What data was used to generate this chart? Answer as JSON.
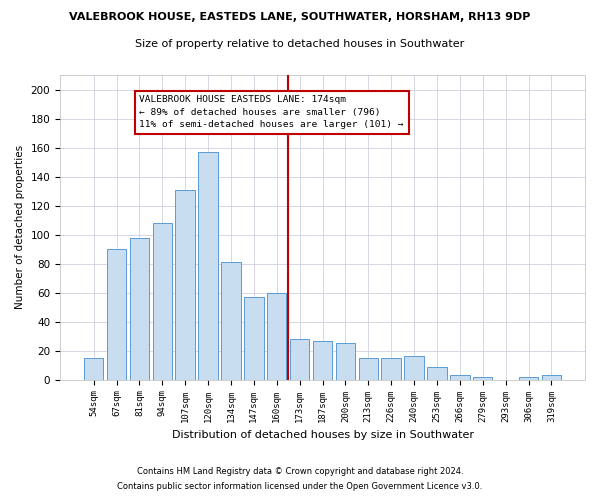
{
  "title": "VALEBROOK HOUSE, EASTEDS LANE, SOUTHWATER, HORSHAM, RH13 9DP",
  "subtitle": "Size of property relative to detached houses in Southwater",
  "xlabel": "Distribution of detached houses by size in Southwater",
  "ylabel": "Number of detached properties",
  "categories": [
    "54sqm",
    "67sqm",
    "81sqm",
    "94sqm",
    "107sqm",
    "120sqm",
    "134sqm",
    "147sqm",
    "160sqm",
    "173sqm",
    "187sqm",
    "200sqm",
    "213sqm",
    "226sqm",
    "240sqm",
    "253sqm",
    "266sqm",
    "279sqm",
    "293sqm",
    "306sqm",
    "319sqm"
  ],
  "values": [
    15,
    90,
    98,
    108,
    131,
    157,
    81,
    57,
    60,
    28,
    27,
    25,
    15,
    15,
    16,
    9,
    3,
    2,
    0,
    2,
    3
  ],
  "bar_color": "#c9ddf0",
  "bar_edge_color": "#5b9bd5",
  "vline_color": "#c00000",
  "annotation_text": "VALEBROOK HOUSE EASTEDS LANE: 174sqm\n← 89% of detached houses are smaller (796)\n11% of semi-detached houses are larger (101) →",
  "annotation_box_color": "#c00000",
  "footnote1": "Contains HM Land Registry data © Crown copyright and database right 2024.",
  "footnote2": "Contains public sector information licensed under the Open Government Licence v3.0.",
  "ylim": [
    0,
    210
  ],
  "yticks": [
    0,
    20,
    40,
    60,
    80,
    100,
    120,
    140,
    160,
    180,
    200
  ],
  "background_color": "#ffffff",
  "grid_color": "#d0d0e0"
}
